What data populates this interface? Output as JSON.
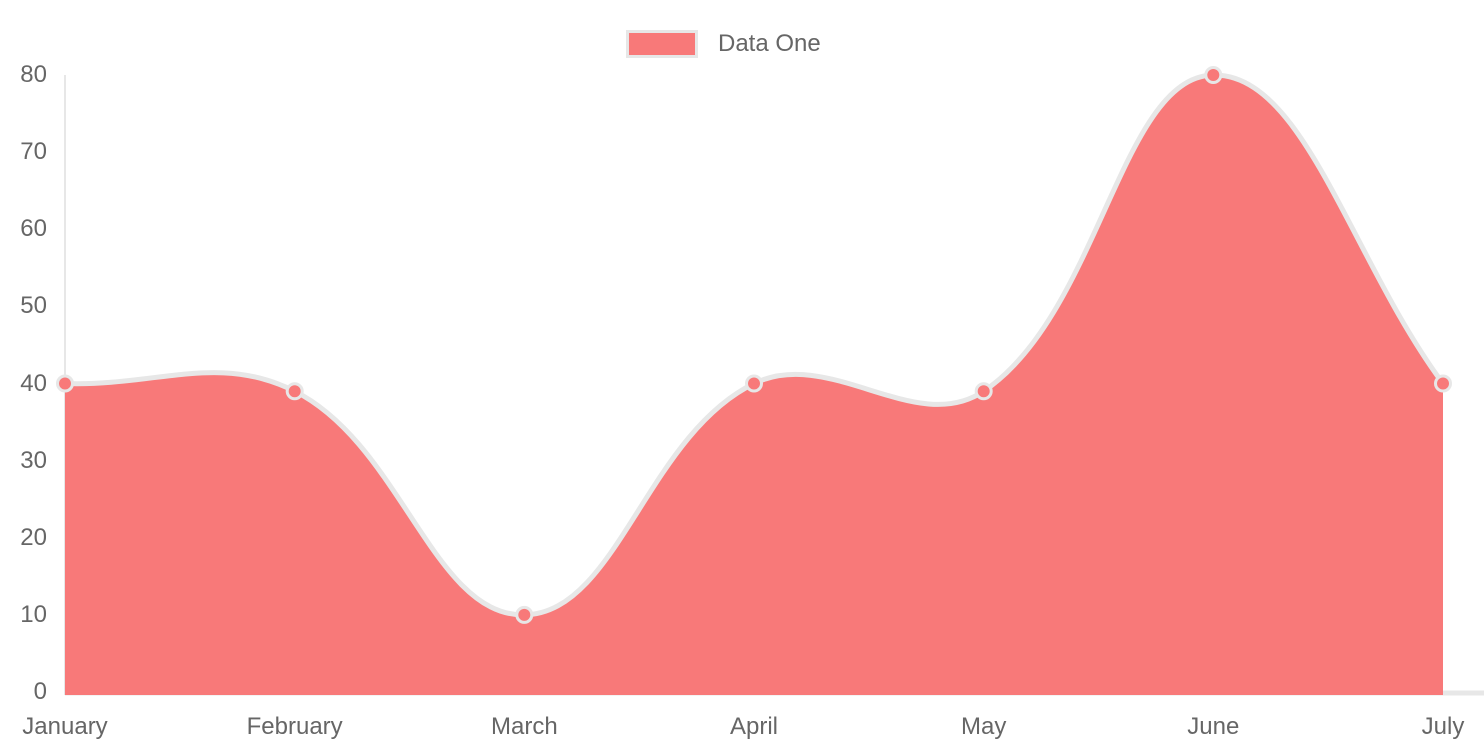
{
  "chart_data": {
    "type": "area",
    "title": "",
    "categories": [
      "January",
      "February",
      "March",
      "April",
      "May",
      "June",
      "July"
    ],
    "series": [
      {
        "name": "Data One",
        "values": [
          40,
          39,
          10,
          40,
          39,
          80,
          40
        ]
      }
    ],
    "ylim": [
      0,
      80
    ],
    "y_ticks": [
      0,
      10,
      20,
      30,
      40,
      50,
      60,
      70,
      80
    ],
    "xlabel": "",
    "ylabel": "",
    "grid": "off",
    "legend_position": "top",
    "line_tension": 0.4,
    "colors": {
      "fill": "#f87979",
      "line": "#e7e7e7",
      "point_fill": "#f87979",
      "point_border": "#e7e7e7",
      "axis_line": "#e7e7e7",
      "text": "#666666",
      "background": "#ffffff"
    }
  }
}
